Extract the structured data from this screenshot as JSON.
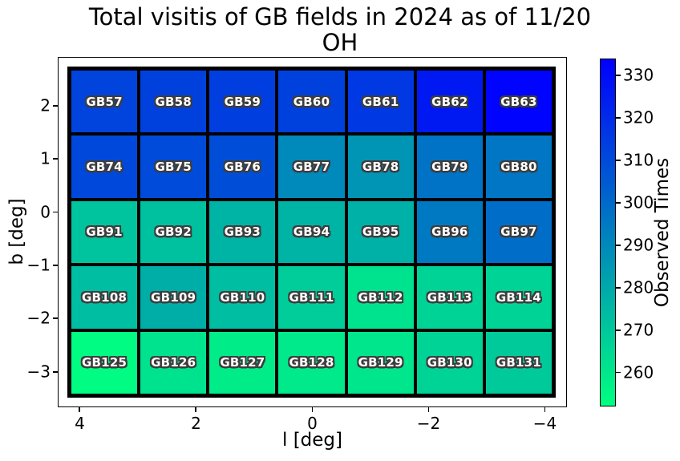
{
  "chart_data": {
    "type": "heatmap",
    "title": "Total visitis of GB fields in 2024 as of 11/20",
    "subtitle": "OH",
    "xlabel": "l [deg]",
    "ylabel": "b [deg]",
    "grid": "off",
    "x_axis": {
      "min": 4.365,
      "max": -4.365,
      "inverted": true,
      "ticks": [
        {
          "label": "4",
          "value": 4
        },
        {
          "label": "2",
          "value": 2
        },
        {
          "label": "0",
          "value": 0
        },
        {
          "label": "−2",
          "value": -2
        },
        {
          "label": "−4",
          "value": -4
        }
      ]
    },
    "y_axis": {
      "top": 2.9,
      "bottom": -3.65,
      "ticks": [
        {
          "label": "2",
          "value": 2
        },
        {
          "label": "1",
          "value": 1
        },
        {
          "label": "0",
          "value": 0
        },
        {
          "label": "−1",
          "value": -1
        },
        {
          "label": "−2",
          "value": -2
        },
        {
          "label": "−3",
          "value": -3
        }
      ]
    },
    "colorbar": {
      "label": "Observed Times",
      "colormap": "winter_r",
      "vmin": 252,
      "vmax": 334,
      "color_low": "#00ff80",
      "color_high": "#0000ff",
      "ticks": [
        260,
        270,
        280,
        290,
        300,
        310,
        320,
        330
      ]
    },
    "rows": [
      {
        "cells": [
          {
            "label": "GB57",
            "value": 312
          },
          {
            "label": "GB58",
            "value": 313
          },
          {
            "label": "GB59",
            "value": 314
          },
          {
            "label": "GB60",
            "value": 313
          },
          {
            "label": "GB61",
            "value": 316
          },
          {
            "label": "GB62",
            "value": 326
          },
          {
            "label": "GB63",
            "value": 333
          }
        ]
      },
      {
        "cells": [
          {
            "label": "GB74",
            "value": 311
          },
          {
            "label": "GB75",
            "value": 310
          },
          {
            "label": "GB76",
            "value": 309
          },
          {
            "label": "GB77",
            "value": 290
          },
          {
            "label": "GB78",
            "value": 286
          },
          {
            "label": "GB79",
            "value": 297
          },
          {
            "label": "GB80",
            "value": 296
          }
        ]
      },
      {
        "cells": [
          {
            "label": "GB91",
            "value": 271
          },
          {
            "label": "GB92",
            "value": 272
          },
          {
            "label": "GB93",
            "value": 276
          },
          {
            "label": "GB94",
            "value": 276
          },
          {
            "label": "GB95",
            "value": 277
          },
          {
            "label": "GB96",
            "value": 295
          },
          {
            "label": "GB97",
            "value": 299
          }
        ]
      },
      {
        "cells": [
          {
            "label": "GB108",
            "value": 273
          },
          {
            "label": "GB109",
            "value": 278
          },
          {
            "label": "GB110",
            "value": 273
          },
          {
            "label": "GB111",
            "value": 268
          },
          {
            "label": "GB112",
            "value": 261
          },
          {
            "label": "GB113",
            "value": 266
          },
          {
            "label": "GB114",
            "value": 266
          }
        ]
      },
      {
        "cells": [
          {
            "label": "GB125",
            "value": 253
          },
          {
            "label": "GB126",
            "value": 261
          },
          {
            "label": "GB127",
            "value": 258
          },
          {
            "label": "GB128",
            "value": 259
          },
          {
            "label": "GB129",
            "value": 260
          },
          {
            "label": "GB130",
            "value": 266
          },
          {
            "label": "GB131",
            "value": 269
          }
        ]
      }
    ]
  }
}
